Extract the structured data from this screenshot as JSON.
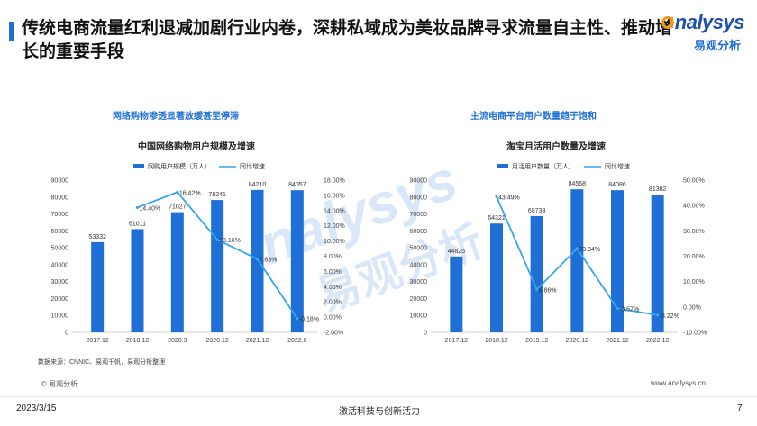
{
  "header": {
    "title": "传统电商流量红利退减加剧行业内卷，深耕私域成为美妆品牌寻求流量自主性、推动增长的重要手段",
    "logo_main": "nalysys",
    "logo_icon": "circle-a-logo-icon",
    "logo_sub": "易观分析",
    "accent_color": "#1f6fd6"
  },
  "left_panel": {
    "heading": "网络购物渗透显著放缓甚至停滞"
  },
  "right_panel": {
    "heading": "主流电商平台用户数量趋于饱和"
  },
  "chart_data": [
    {
      "type": "bar",
      "title": "中国网络购物用户规模及增速",
      "categories": [
        "2017.12",
        "2018.12",
        "2020.3",
        "2020.12",
        "2021.12",
        "2022.6"
      ],
      "series": [
        {
          "name": "网购用户规模（万人）",
          "kind": "bar",
          "axis": "left",
          "color": "#1f6fd6",
          "values": [
            53332,
            61011,
            71027,
            78241,
            84210,
            84057
          ],
          "labels": [
            "53332",
            "61011",
            "71027",
            "78241",
            "84210",
            "84057"
          ]
        },
        {
          "name": "同比增速",
          "kind": "line",
          "axis": "right",
          "color": "#35a6ee",
          "values": [
            null,
            14.4,
            16.42,
            10.16,
            7.63,
            -0.18
          ],
          "labels": [
            "",
            "14.40%",
            "16.42%",
            "10.16%",
            "7.63%",
            "-0.18%"
          ]
        }
      ],
      "left_axis": {
        "min": 0,
        "max": 90000,
        "ticks": [
          "0",
          "10000",
          "20000",
          "30000",
          "40000",
          "50000",
          "60000",
          "70000",
          "80000",
          "90000"
        ]
      },
      "right_axis": {
        "min": -2,
        "max": 18,
        "ticks": [
          "-2.00%",
          "0.00%",
          "2.00%",
          "4.00%",
          "6.00%",
          "8.00%",
          "10.00%",
          "12.00%",
          "14.00%",
          "16.00%",
          "18.00%"
        ]
      },
      "legend_position": "top",
      "grid": false
    },
    {
      "type": "bar",
      "title": "淘宝月活用户数量及增速",
      "categories": [
        "2017.12",
        "2018.12",
        "2019.12",
        "2020.12",
        "2021.12",
        "2022.12"
      ],
      "series": [
        {
          "name": "月活用户数量（万人）",
          "kind": "bar",
          "axis": "left",
          "color": "#1f6fd6",
          "values": [
            44825,
            64321,
            68733,
            84568,
            84086,
            81382
          ],
          "labels": [
            "44825",
            "64321",
            "68733",
            "84568",
            "84086",
            "81382"
          ]
        },
        {
          "name": "同比增速",
          "kind": "line",
          "axis": "right",
          "color": "#35a6ee",
          "values": [
            null,
            43.49,
            6.86,
            23.04,
            -0.57,
            -3.22
          ],
          "labels": [
            "",
            "43.49%",
            "6.86%",
            "23.04%",
            "-0.57%",
            "-3.22%"
          ]
        }
      ],
      "left_axis": {
        "min": 0,
        "max": 90000,
        "ticks": [
          "0",
          "10000",
          "20000",
          "30000",
          "40000",
          "50000",
          "60000",
          "70000",
          "80000",
          "90000"
        ]
      },
      "right_axis": {
        "min": -10,
        "max": 50,
        "ticks": [
          "-10.00%",
          "0.00%",
          "10.00%",
          "20.00%",
          "30.00%",
          "40.00%",
          "50.00%"
        ]
      },
      "legend_position": "top",
      "grid": false
    }
  ],
  "watermark": {
    "main": "nalysys",
    "sub": "易观分析"
  },
  "footer": {
    "source": "数据来源：CNNIC、易观千帆，易观分析整理",
    "copyright": "© 易观分析",
    "url": "www.analysys.cn",
    "date": "2023/3/15",
    "slogan": "激活科技与创新活力",
    "page": "7"
  }
}
